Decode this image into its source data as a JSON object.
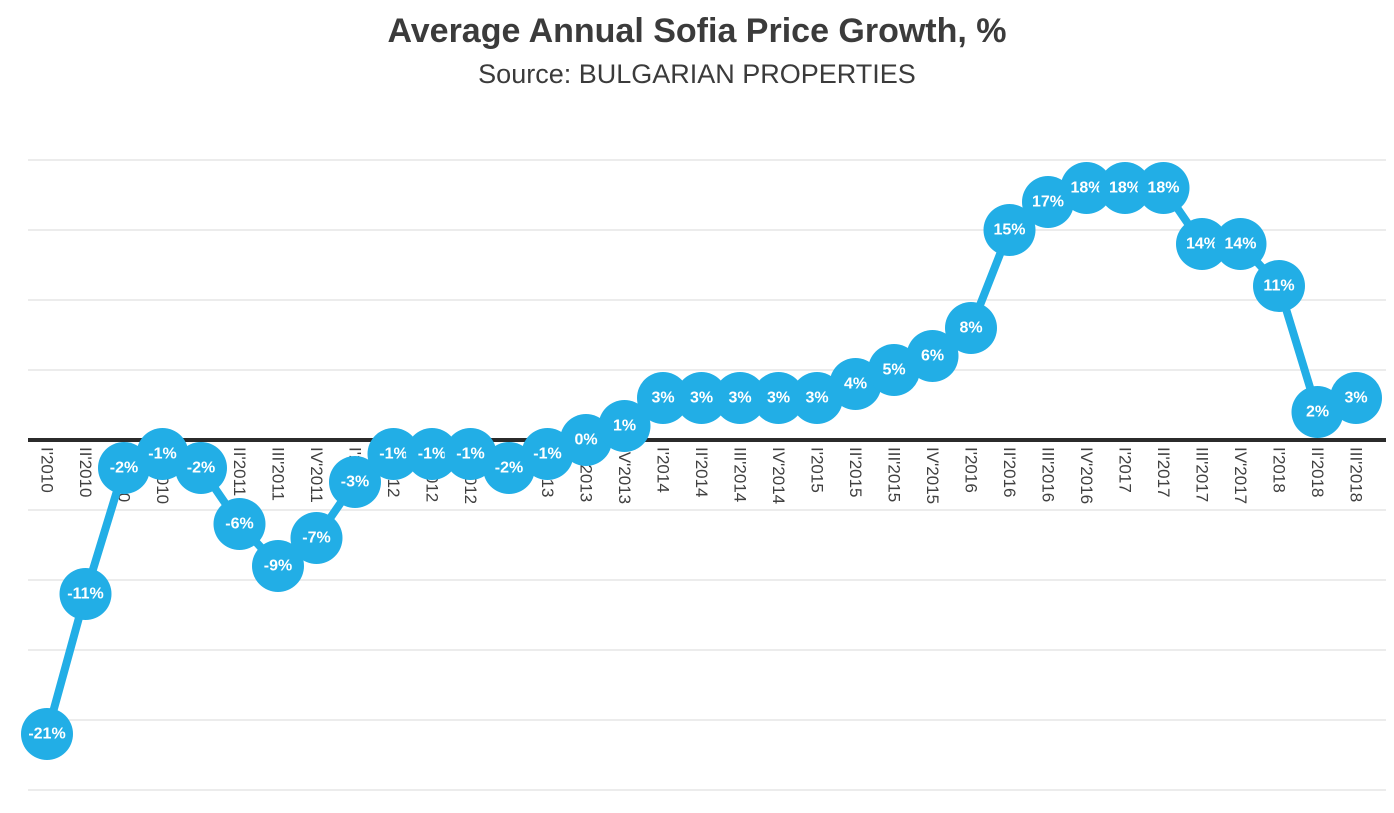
{
  "chart_data": {
    "type": "line",
    "title": "Average Annual Sofia Price Growth, %",
    "subtitle": "Source: BULGARIAN PROPERTIES",
    "categories": [
      "I'2010",
      "II'2010",
      "III'2010",
      "IV'2010",
      "I'2011",
      "II'2011",
      "III'2011",
      "IV'2011",
      "I'2012",
      "II'2012",
      "III'2012",
      "IV'2012",
      "I'2013",
      "II'2013",
      "III'2013",
      "IV'2013",
      "I'2014",
      "II'2014",
      "III'2014",
      "IV'2014",
      "I'2015",
      "II'2015",
      "III'2015",
      "IV'2015",
      "I'2016",
      "II'2016",
      "III'2016",
      "IV'2016",
      "I'2017",
      "II'2017",
      "III'2017",
      "IV'2017",
      "I'2018",
      "II'2018",
      "III'2018"
    ],
    "values": [
      -21,
      -11,
      -2,
      -1,
      -2,
      -6,
      -9,
      -7,
      -3,
      -1,
      -1,
      -1,
      -2,
      -1,
      0,
      1,
      3,
      3,
      3,
      3,
      3,
      4,
      5,
      6,
      8,
      15,
      17,
      18,
      18,
      18,
      14,
      14,
      11,
      2,
      3
    ],
    "point_labels": [
      "-21%",
      "-11%",
      "-2%",
      "-1%",
      "-2%",
      "-6%",
      "-9%",
      "-7%",
      "-3%",
      "-1%",
      "-1%",
      "-1%",
      "-2%",
      "-1%",
      "0%",
      "1%",
      "3%",
      "3%",
      "3%",
      "3%",
      "3%",
      "4%",
      "5%",
      "6%",
      "8%",
      "15%",
      "17%",
      "18%",
      "18%",
      "18%",
      "14%",
      "14%",
      "11%",
      "2%",
      "3%"
    ],
    "xlabel": "",
    "ylabel": "",
    "ylim": [
      -25,
      20
    ],
    "gridline_step": 5,
    "grid": true,
    "legend": "none",
    "colors": {
      "series": "#22aee6",
      "point_label": "#ffffff",
      "gridline": "#d9d9d9",
      "zero_axis": "#2b2b2b",
      "axis_label": "#404040",
      "title": "#3b3b3b"
    }
  }
}
